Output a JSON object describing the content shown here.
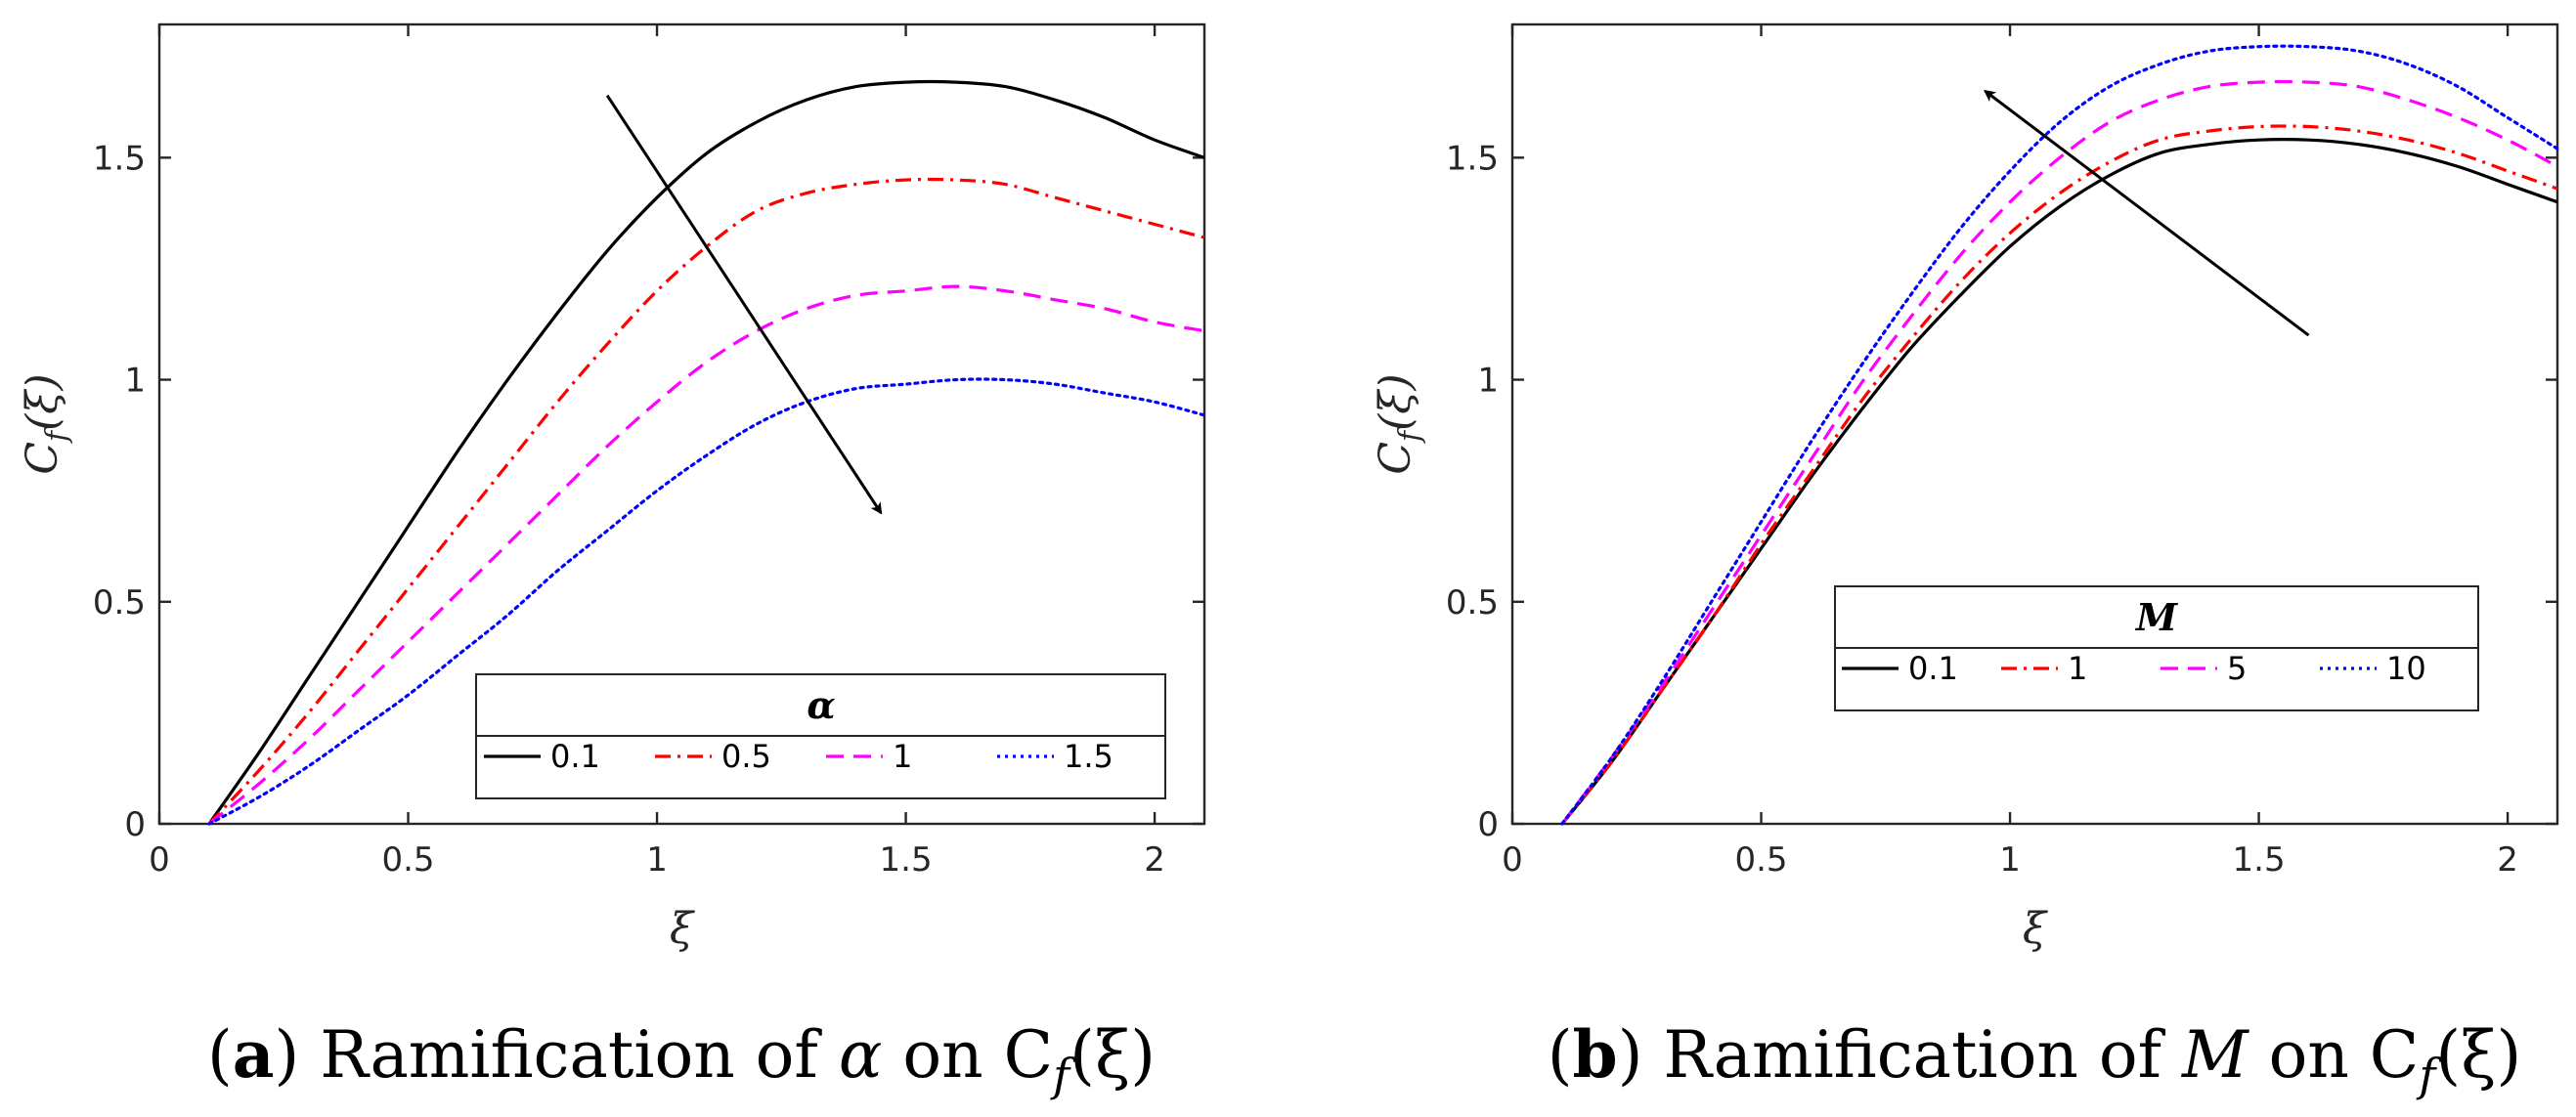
{
  "chart_data": [
    {
      "type": "line",
      "panel": "a",
      "caption": {
        "label": "a",
        "text": "Ramification of α on C_f(ξ)",
        "parts": [
          "(",
          "a",
          ") Ramification of ",
          "α",
          " on C",
          "f",
          "(ξ)"
        ]
      },
      "xlabel": "ξ",
      "ylabel": "C_f(ξ)",
      "ylabel_parts": [
        "C",
        "f",
        "(ξ)"
      ],
      "xlim": [
        0,
        2.1
      ],
      "ylim": [
        0,
        1.8
      ],
      "xticks": [
        0,
        0.5,
        1,
        1.5,
        2
      ],
      "xtick_labels": [
        "0",
        "0.5",
        "1",
        "1.5",
        "2"
      ],
      "yticks": [
        0,
        0.5,
        1,
        1.5
      ],
      "ytick_labels": [
        "0",
        "0.5",
        "1",
        "1.5"
      ],
      "legend": {
        "title": "α",
        "placement": "bottom-right",
        "entries": [
          "0.1",
          "0.5",
          "1",
          "1.5"
        ]
      },
      "arrow": {
        "from": [
          0.9,
          1.64
        ],
        "to": [
          1.45,
          0.7
        ],
        "direction": "decreasing"
      },
      "x": [
        0.1,
        0.2,
        0.3,
        0.4,
        0.5,
        0.6,
        0.7,
        0.8,
        0.9,
        1.0,
        1.1,
        1.2,
        1.3,
        1.4,
        1.5,
        1.6,
        1.7,
        1.8,
        1.9,
        2.0,
        2.1
      ],
      "series": [
        {
          "name": "0.1",
          "color": "#000000",
          "dash": "solid",
          "values": [
            0.0,
            0.16,
            0.33,
            0.5,
            0.67,
            0.84,
            1.0,
            1.15,
            1.29,
            1.41,
            1.51,
            1.58,
            1.63,
            1.66,
            1.67,
            1.67,
            1.66,
            1.63,
            1.59,
            1.54,
            1.5
          ]
        },
        {
          "name": "0.5",
          "color": "#ff0000",
          "dash": "dashdot",
          "values": [
            0.0,
            0.12,
            0.25,
            0.39,
            0.53,
            0.67,
            0.81,
            0.95,
            1.08,
            1.2,
            1.3,
            1.38,
            1.42,
            1.44,
            1.45,
            1.45,
            1.44,
            1.41,
            1.38,
            1.35,
            1.32
          ]
        },
        {
          "name": "1",
          "color": "#ff00ff",
          "dash": "dashed",
          "values": [
            0.0,
            0.09,
            0.19,
            0.3,
            0.41,
            0.52,
            0.63,
            0.74,
            0.85,
            0.95,
            1.04,
            1.11,
            1.16,
            1.19,
            1.2,
            1.21,
            1.2,
            1.18,
            1.16,
            1.13,
            1.11
          ]
        },
        {
          "name": "1.5",
          "color": "#0000ff",
          "dash": "dotted",
          "values": [
            0.0,
            0.06,
            0.13,
            0.21,
            0.29,
            0.38,
            0.47,
            0.57,
            0.66,
            0.75,
            0.83,
            0.9,
            0.95,
            0.98,
            0.99,
            1.0,
            1.0,
            0.99,
            0.97,
            0.95,
            0.92
          ]
        }
      ]
    },
    {
      "type": "line",
      "panel": "b",
      "caption": {
        "label": "b",
        "text": "Ramification of M on C_f(ξ)",
        "parts": [
          "(",
          "b",
          ") Ramification of ",
          "M",
          " on C",
          "f",
          "(ξ)"
        ]
      },
      "xlabel": "ξ",
      "ylabel": "C_f(ξ)",
      "ylabel_parts": [
        "C",
        "f",
        "(ξ)"
      ],
      "xlim": [
        0,
        2.1
      ],
      "ylim": [
        0,
        1.8
      ],
      "xticks": [
        0,
        0.5,
        1,
        1.5,
        2
      ],
      "xtick_labels": [
        "0",
        "0.5",
        "1",
        "1.5",
        "2"
      ],
      "yticks": [
        0,
        0.5,
        1,
        1.5
      ],
      "ytick_labels": [
        "0",
        "0.5",
        "1",
        "1.5"
      ],
      "legend": {
        "title": "M",
        "placement": "center-left",
        "entries": [
          "0.1",
          "1",
          "5",
          "10"
        ]
      },
      "arrow": {
        "from": [
          1.6,
          1.1
        ],
        "to": [
          0.95,
          1.65
        ],
        "direction": "increasing"
      },
      "x": [
        0.1,
        0.2,
        0.3,
        0.4,
        0.5,
        0.6,
        0.7,
        0.8,
        0.9,
        1.0,
        1.1,
        1.2,
        1.3,
        1.4,
        1.5,
        1.6,
        1.7,
        1.8,
        1.9,
        2.0,
        2.1
      ],
      "series": [
        {
          "name": "0.1",
          "color": "#000000",
          "dash": "solid",
          "values": [
            0.0,
            0.14,
            0.3,
            0.46,
            0.62,
            0.78,
            0.93,
            1.07,
            1.19,
            1.3,
            1.39,
            1.46,
            1.51,
            1.53,
            1.54,
            1.54,
            1.53,
            1.51,
            1.48,
            1.44,
            1.4
          ]
        },
        {
          "name": "1",
          "color": "#ff0000",
          "dash": "dashdot",
          "values": [
            0.0,
            0.14,
            0.3,
            0.46,
            0.63,
            0.79,
            0.95,
            1.09,
            1.22,
            1.33,
            1.42,
            1.49,
            1.54,
            1.56,
            1.57,
            1.57,
            1.56,
            1.54,
            1.51,
            1.47,
            1.43
          ]
        },
        {
          "name": "5",
          "color": "#ff00ff",
          "dash": "dashed",
          "values": [
            0.0,
            0.15,
            0.31,
            0.48,
            0.65,
            0.82,
            0.99,
            1.14,
            1.28,
            1.4,
            1.5,
            1.58,
            1.63,
            1.66,
            1.67,
            1.67,
            1.66,
            1.63,
            1.59,
            1.54,
            1.48
          ]
        },
        {
          "name": "10",
          "color": "#0000ff",
          "dash": "dotted",
          "values": [
            0.0,
            0.15,
            0.32,
            0.5,
            0.68,
            0.86,
            1.03,
            1.19,
            1.34,
            1.47,
            1.58,
            1.66,
            1.71,
            1.74,
            1.75,
            1.75,
            1.74,
            1.71,
            1.66,
            1.59,
            1.52
          ]
        }
      ]
    }
  ]
}
